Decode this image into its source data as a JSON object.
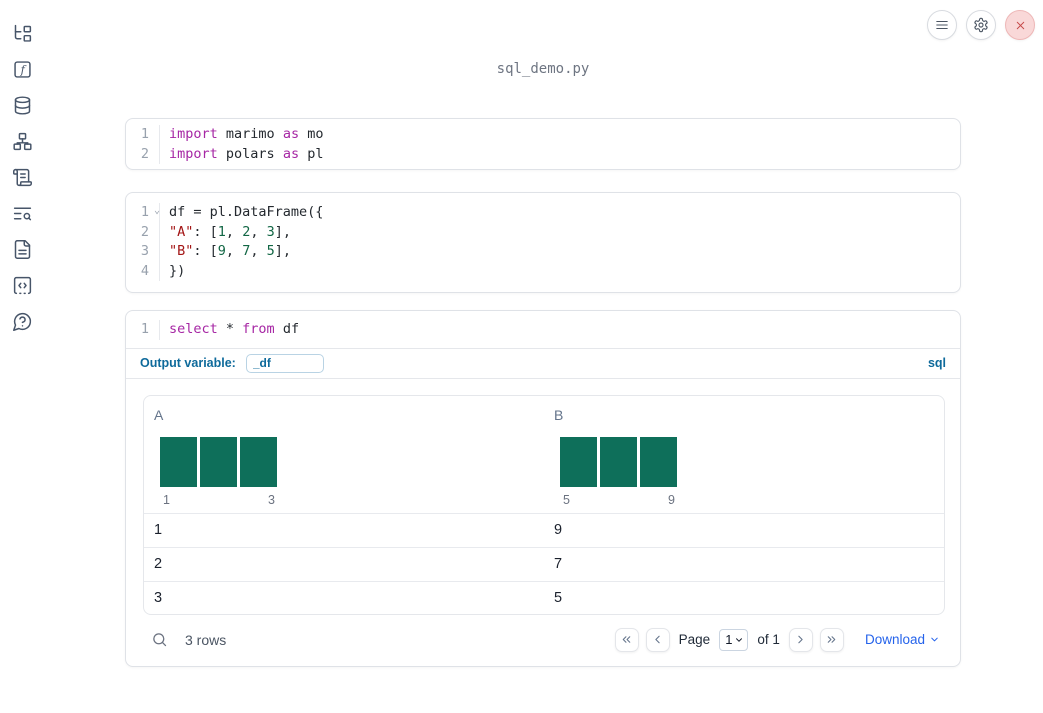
{
  "window": {
    "title": "sql_demo.py",
    "controls": [
      "menu",
      "settings",
      "close"
    ]
  },
  "sidebar": {
    "icons": [
      "file-explorer",
      "functions",
      "datasources",
      "dependency-graph",
      "logs",
      "text-search",
      "snippets",
      "scratchpad",
      "help"
    ]
  },
  "cells": [
    {
      "id": "imports",
      "lines": [
        {
          "num": "1",
          "tokens": [
            [
              "kw",
              "import"
            ],
            [
              "pl",
              " marimo "
            ],
            [
              "kw",
              "as"
            ],
            [
              "pl",
              " mo"
            ]
          ]
        },
        {
          "num": "2",
          "tokens": [
            [
              "kw",
              "import"
            ],
            [
              "pl",
              " polars "
            ],
            [
              "kw",
              "as"
            ],
            [
              "pl",
              " pl"
            ]
          ]
        }
      ]
    },
    {
      "id": "dataframe",
      "lines": [
        {
          "num": "1",
          "fold": true,
          "tokens": [
            [
              "pl",
              "df = pl.DataFrame({"
            ]
          ]
        },
        {
          "num": "2",
          "tokens": [
            [
              "pl",
              "    "
            ],
            [
              "str",
              "\"A\""
            ],
            [
              "pl",
              ": ["
            ],
            [
              "num",
              "1"
            ],
            [
              "pl",
              ", "
            ],
            [
              "num",
              "2"
            ],
            [
              "pl",
              ", "
            ],
            [
              "num",
              "3"
            ],
            [
              "pl",
              "],"
            ]
          ]
        },
        {
          "num": "3",
          "tokens": [
            [
              "pl",
              "    "
            ],
            [
              "str",
              "\"B\""
            ],
            [
              "pl",
              ": ["
            ],
            [
              "num",
              "9"
            ],
            [
              "pl",
              ", "
            ],
            [
              "num",
              "7"
            ],
            [
              "pl",
              ", "
            ],
            [
              "num",
              "5"
            ],
            [
              "pl",
              "],"
            ]
          ]
        },
        {
          "num": "4",
          "tokens": [
            [
              "pl",
              "})"
            ]
          ]
        }
      ]
    },
    {
      "id": "sql",
      "lines": [
        {
          "num": "1",
          "tokens": [
            [
              "kw",
              "select"
            ],
            [
              "pl",
              " * "
            ],
            [
              "kw",
              "from"
            ],
            [
              "pl",
              " df"
            ]
          ]
        }
      ],
      "footer": {
        "label": "Output variable:",
        "value": "_df",
        "language": "sql"
      }
    }
  ],
  "table": {
    "columns": [
      {
        "name": "A",
        "hist": {
          "bars": [
            1,
            1,
            1
          ],
          "min": "1",
          "max": "3"
        }
      },
      {
        "name": "B",
        "hist": {
          "bars": [
            1,
            1,
            1
          ],
          "min": "5",
          "max": "9"
        }
      }
    ],
    "rows": [
      [
        "1",
        "9"
      ],
      [
        "2",
        "7"
      ],
      [
        "3",
        "5"
      ]
    ],
    "footer": {
      "row_count": "3 rows",
      "page_label": "Page",
      "page_value": "1",
      "of_label": "of 1",
      "download_label": "Download"
    }
  },
  "colors": {
    "accent_blue": "#0e6a9b",
    "link_blue": "#2563eb",
    "keyword_purple": "#a626a4",
    "string_red": "#a31515",
    "number_green": "#116644",
    "histogram_bar_green": "#0e6f5a",
    "close_button_red": "#c64848",
    "close_button_bg": "#f9d8d8"
  }
}
